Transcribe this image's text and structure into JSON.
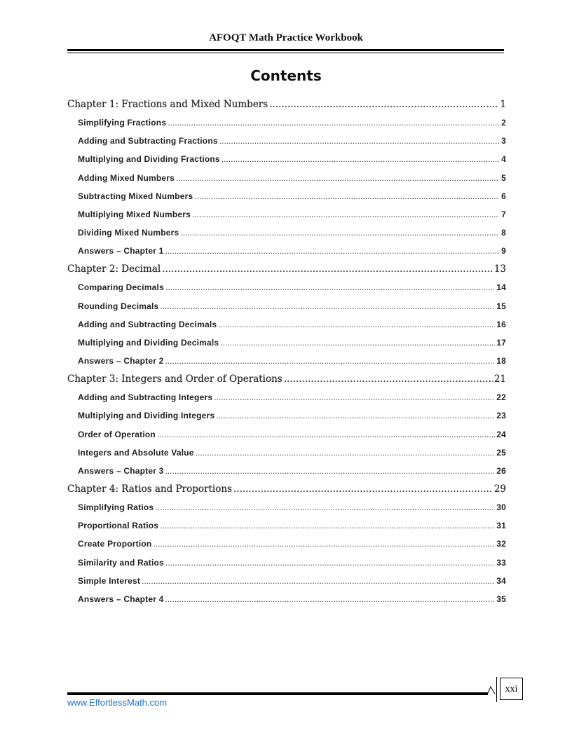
{
  "header": {
    "title": "AFOQT Math Practice Workbook"
  },
  "contents_title": "Contents",
  "toc": [
    {
      "type": "chapter",
      "label": "Chapter 1: Fractions and Mixed Numbers",
      "page": "1"
    },
    {
      "type": "entry",
      "label": "Simplifying Fractions",
      "page": "2"
    },
    {
      "type": "entry",
      "label": "Adding and Subtracting Fractions",
      "page": "3"
    },
    {
      "type": "entry",
      "label": "Multiplying and Dividing Fractions",
      "page": "4"
    },
    {
      "type": "entry",
      "label": "Adding Mixed Numbers",
      "page": "5"
    },
    {
      "type": "entry",
      "label": "Subtracting Mixed Numbers",
      "page": "6"
    },
    {
      "type": "entry",
      "label": "Multiplying Mixed Numbers",
      "page": "7"
    },
    {
      "type": "entry",
      "label": "Dividing Mixed Numbers",
      "page": "8"
    },
    {
      "type": "entry",
      "label": "Answers – Chapter 1",
      "page": "9"
    },
    {
      "type": "chapter",
      "label": "Chapter 2: Decimal",
      "page": "13"
    },
    {
      "type": "entry",
      "label": "Comparing Decimals",
      "page": "14"
    },
    {
      "type": "entry",
      "label": "Rounding Decimals",
      "page": "15"
    },
    {
      "type": "entry",
      "label": "Adding and Subtracting Decimals",
      "page": "16"
    },
    {
      "type": "entry",
      "label": "Multiplying and Dividing Decimals",
      "page": "17"
    },
    {
      "type": "entry",
      "label": "Answers – Chapter 2",
      "page": "18"
    },
    {
      "type": "chapter",
      "label": "Chapter 3: Integers and Order of Operations",
      "page": "21"
    },
    {
      "type": "entry",
      "label": "Adding and Subtracting Integers",
      "page": "22"
    },
    {
      "type": "entry",
      "label": "Multiplying and Dividing Integers",
      "page": "23"
    },
    {
      "type": "entry",
      "label": "Order of Operation",
      "page": "24"
    },
    {
      "type": "entry",
      "label": "Integers and Absolute Value",
      "page": "25"
    },
    {
      "type": "entry",
      "label": "Answers – Chapter 3",
      "page": "26"
    },
    {
      "type": "chapter",
      "label": "Chapter 4: Ratios and Proportions",
      "page": "29"
    },
    {
      "type": "entry",
      "label": "Simplifying Ratios",
      "page": "30"
    },
    {
      "type": "entry",
      "label": "Proportional Ratios",
      "page": "31"
    },
    {
      "type": "entry",
      "label": "Create Proportion",
      "page": "32"
    },
    {
      "type": "entry",
      "label": "Similarity and Ratios",
      "page": "33"
    },
    {
      "type": "entry",
      "label": "Simple Interest",
      "page": "34"
    },
    {
      "type": "entry",
      "label": "Answers – Chapter 4",
      "page": "35"
    }
  ],
  "footer": {
    "url": "www.EffortlessMath.com",
    "page_number": "xxi",
    "url_color": "#1e6fc8"
  }
}
